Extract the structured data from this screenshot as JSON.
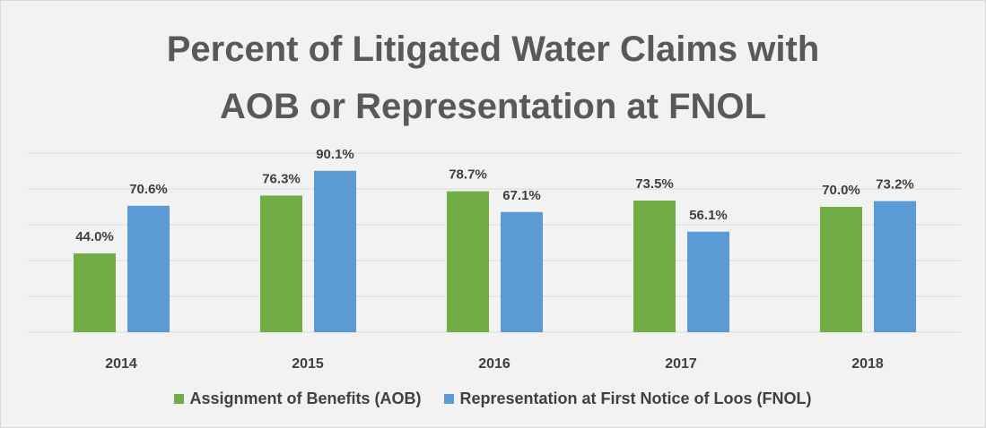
{
  "chart_data": {
    "type": "bar",
    "title": "Percent of Litigated Water Claims with AOB or Representation at FNOL",
    "categories": [
      "2014",
      "2015",
      "2016",
      "2017",
      "2018"
    ],
    "series": [
      {
        "name": "Assignment of Benefits (AOB)",
        "color": "#70ad47",
        "values": [
          44.0,
          76.3,
          78.7,
          73.5,
          70.0
        ],
        "value_labels": [
          "44.0%",
          "76.3%",
          "78.7%",
          "73.5%",
          "70.0%"
        ]
      },
      {
        "name": "Representation at First Notice of Loos (FNOL)",
        "color": "#5b9bd5",
        "values": [
          70.6,
          90.1,
          67.1,
          56.1,
          73.2
        ],
        "value_labels": [
          "70.6%",
          "90.1%",
          "67.1%",
          "56.1%",
          "73.2%"
        ]
      }
    ],
    "ylim": [
      0,
      100
    ],
    "yticks": [
      0,
      20,
      40,
      60,
      80,
      100
    ],
    "grid": true
  }
}
